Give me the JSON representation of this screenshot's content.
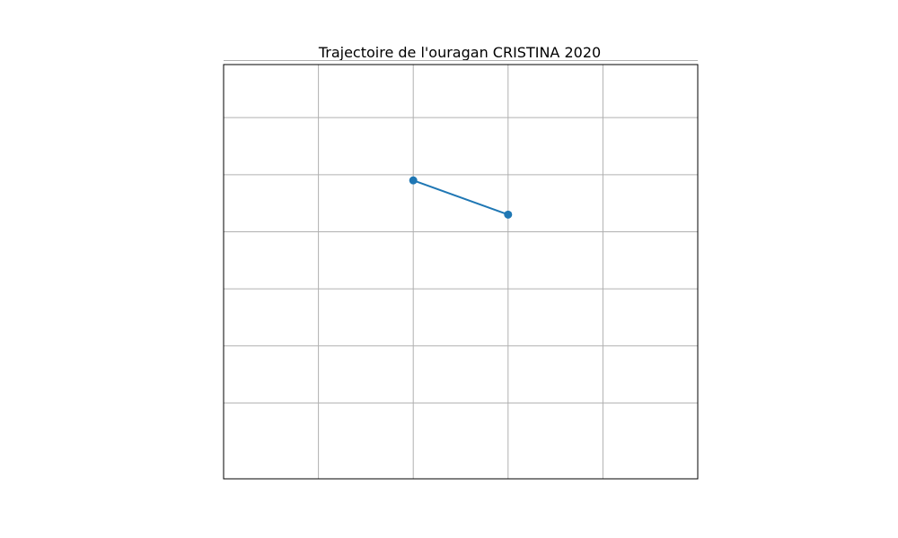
{
  "chart_data": {
    "type": "line",
    "title": "Trajectoire de l'ouragan CRISTINA 2020",
    "xlabel": "",
    "ylabel": "",
    "xlim": [
      -1,
      4
    ],
    "ylim": [
      -1.33,
      5.93
    ],
    "grid": true,
    "x_gridlines": [
      0,
      1,
      2,
      3
    ],
    "y_gridlines": [
      0,
      1,
      2,
      3,
      4,
      5,
      6
    ],
    "series": [
      {
        "x": [
          1,
          2
        ],
        "y": [
          3.9,
          3.3
        ],
        "color": "#1f77b4",
        "marker": "circle"
      }
    ]
  }
}
